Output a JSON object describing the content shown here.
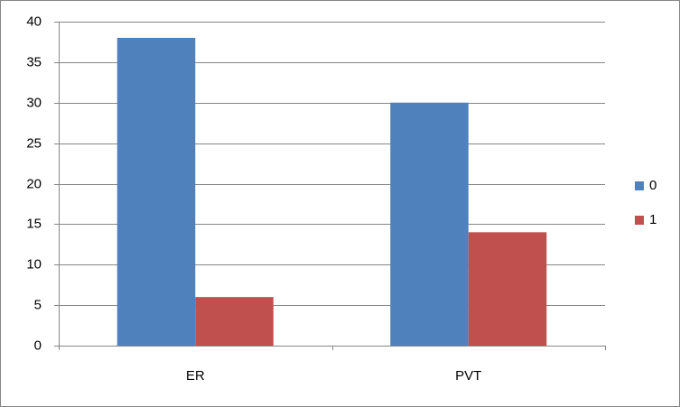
{
  "chart_data": {
    "type": "bar",
    "categories": [
      "ER",
      "PVT"
    ],
    "series": [
      {
        "name": "0",
        "color": "#4f81bd",
        "values": [
          38,
          30
        ]
      },
      {
        "name": "1",
        "color": "#c0504d",
        "values": [
          6,
          14
        ]
      }
    ],
    "ylim": [
      0,
      40
    ],
    "yticks": [
      0,
      5,
      10,
      15,
      20,
      25,
      30,
      35,
      40
    ],
    "grid": true,
    "legend": "right"
  }
}
